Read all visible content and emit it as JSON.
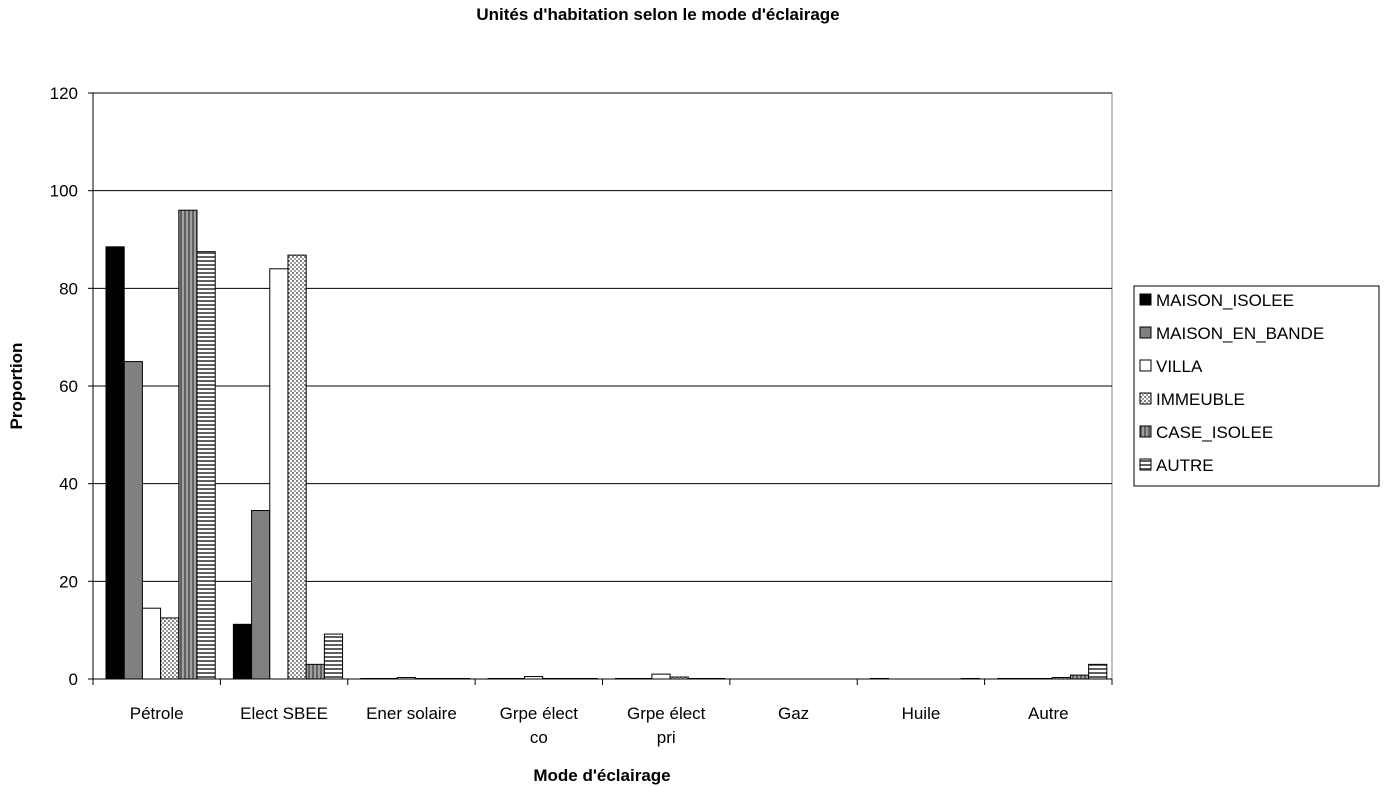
{
  "chart_data": {
    "type": "bar",
    "title": "Unités d'habitation selon le mode d'éclairage",
    "xlabel": "Mode d'éclairage",
    "ylabel": "Proportion",
    "categories": [
      "Pétrole",
      "Elect SBEE",
      "Ener solaire",
      "Grpe élect co",
      "Grpe élect pri",
      "Gaz",
      "Huile",
      "Autre"
    ],
    "category_lines": [
      [
        "Pétrole"
      ],
      [
        "Elect SBEE"
      ],
      [
        "Ener solaire"
      ],
      [
        "Grpe élect",
        "co"
      ],
      [
        "Grpe élect",
        "pri"
      ],
      [
        "Gaz"
      ],
      [
        "Huile"
      ],
      [
        "Autre"
      ]
    ],
    "yticks": [
      "0",
      "20",
      "40",
      "60",
      "80",
      "100",
      "120"
    ],
    "ylim": [
      0,
      120
    ],
    "grid": true,
    "legend_position": "right",
    "series": [
      {
        "name": "MAISON_ISOLEE",
        "color": "#000000",
        "pattern": "solid",
        "values": [
          88.5,
          11.2,
          0.1,
          0.1,
          0.1,
          0,
          0.1,
          0.1
        ]
      },
      {
        "name": "MAISON_EN_BANDE",
        "color": "#808080",
        "pattern": "solid",
        "values": [
          65.0,
          34.5,
          0.1,
          0.1,
          0.1,
          0,
          0,
          0.1
        ]
      },
      {
        "name": "VILLA",
        "color": "#ffffff",
        "pattern": "solid",
        "values": [
          14.5,
          84.0,
          0.3,
          0.5,
          1.0,
          0,
          0,
          0.1
        ]
      },
      {
        "name": "IMMEUBLE",
        "color": "#c0c0c0",
        "pattern": "dots",
        "values": [
          12.5,
          86.8,
          0.1,
          0.1,
          0.4,
          0,
          0,
          0.3
        ]
      },
      {
        "name": "CASE_ISOLEE",
        "color": "#808080",
        "pattern": "vlines",
        "values": [
          96.0,
          3.0,
          0.1,
          0.1,
          0.1,
          0,
          0,
          0.8
        ]
      },
      {
        "name": "AUTRE",
        "color": "#808080",
        "pattern": "hlines",
        "values": [
          87.5,
          9.2,
          0.1,
          0.1,
          0.1,
          0,
          0.1,
          3.0
        ]
      }
    ]
  }
}
